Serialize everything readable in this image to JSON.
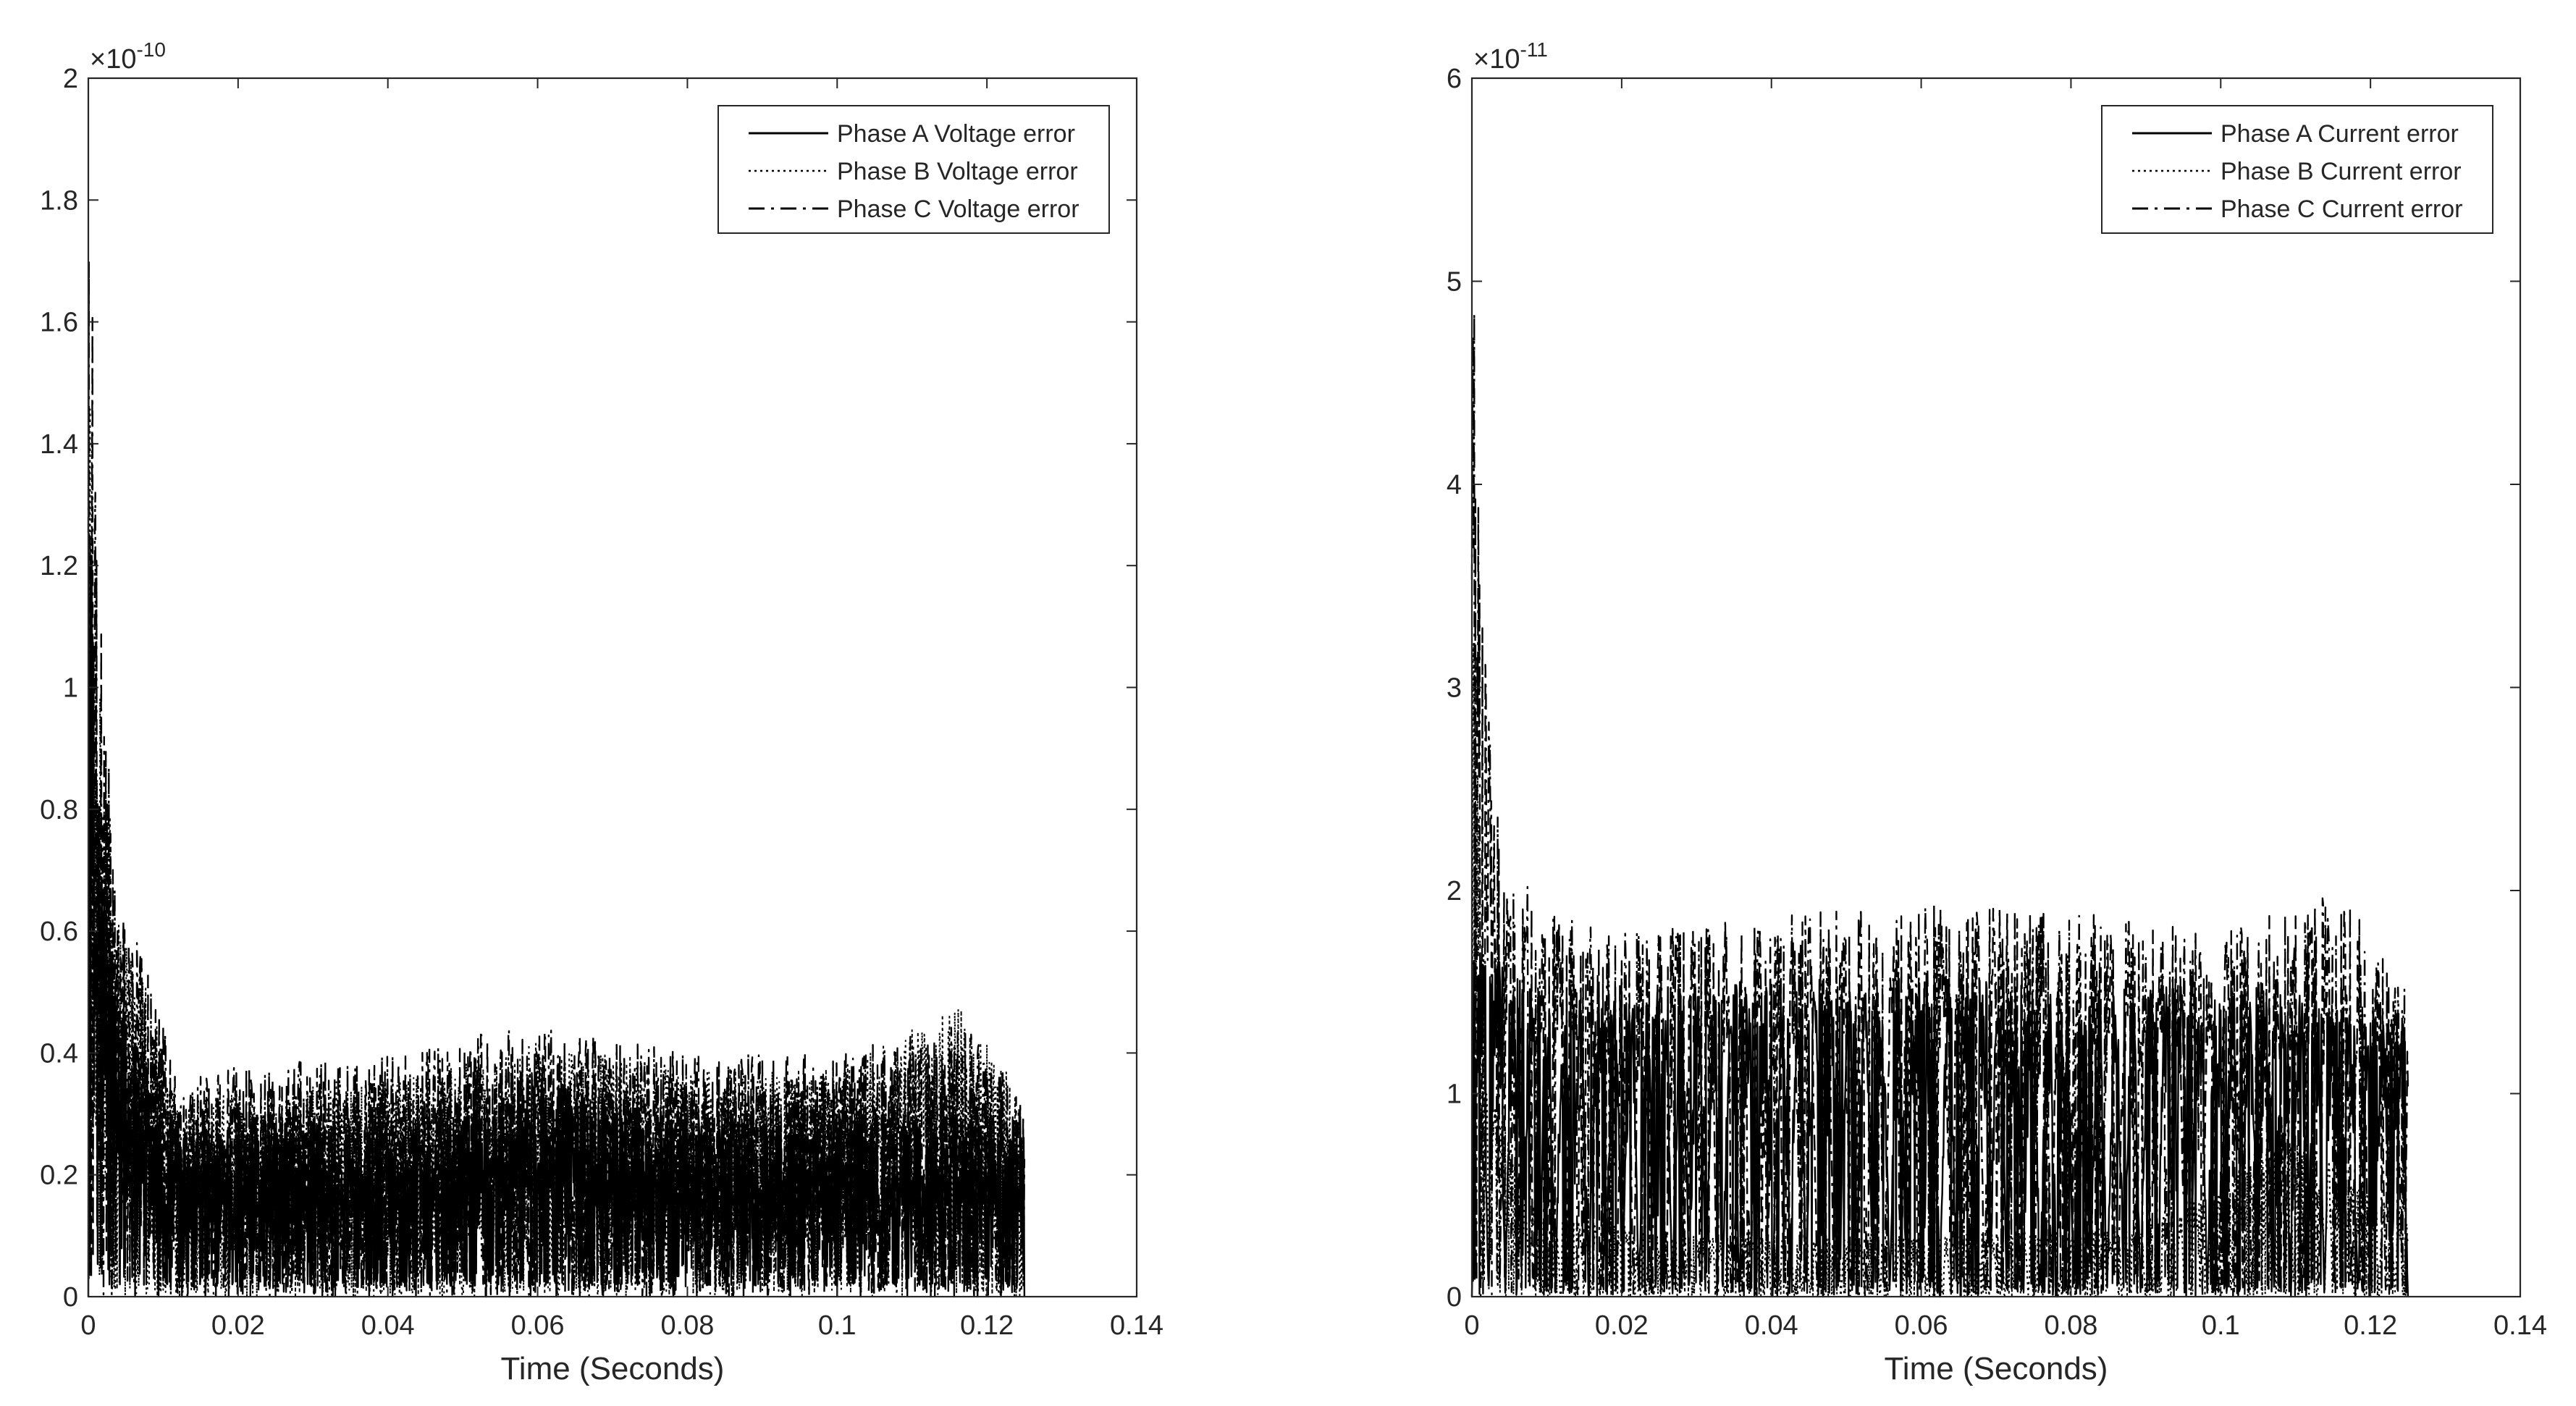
{
  "chart_data": [
    {
      "type": "line",
      "title": "",
      "xlabel": "Time (Seconds)",
      "ylabel": "",
      "exponent_label": "×10",
      "exponent_power": "-10",
      "xlim": [
        0,
        0.14
      ],
      "ylim": [
        0,
        2
      ],
      "xticks": [
        0,
        0.02,
        0.04,
        0.06,
        0.08,
        0.1,
        0.12,
        0.14
      ],
      "xtick_labels": [
        "0",
        "0.02",
        "0.04",
        "0.06",
        "0.08",
        "0.1",
        "0.12",
        "0.14"
      ],
      "yticks": [
        0,
        0.2,
        0.4,
        0.6,
        0.8,
        1,
        1.2,
        1.4,
        1.6,
        1.8,
        2
      ],
      "ytick_labels": [
        "0",
        "0.2",
        "0.4",
        "0.6",
        "0.8",
        "1",
        "1.2",
        "1.4",
        "1.6",
        "1.8",
        "2"
      ],
      "grid": false,
      "legend_position": "top-right",
      "t_end": 0.125,
      "series": [
        {
          "name": "Phase A Voltage error",
          "style": "solid",
          "envelope_t": [
            0,
            0.0015,
            0.004,
            0.008,
            0.012,
            0.02,
            0.03,
            0.05,
            0.06,
            0.08,
            0.1,
            0.125
          ],
          "envelope_v": [
            1.5,
            0.75,
            0.5,
            0.35,
            0.3,
            0.28,
            0.3,
            0.3,
            0.38,
            0.3,
            0.3,
            0.3
          ],
          "cycles": 420,
          "floor": 0.02,
          "seed": 11
        },
        {
          "name": "Phase B Voltage error",
          "style": "dotted",
          "envelope_t": [
            0,
            0.0015,
            0.004,
            0.008,
            0.012,
            0.02,
            0.04,
            0.06,
            0.08,
            0.1,
            0.117,
            0.125
          ],
          "envelope_v": [
            1.8,
            1.0,
            0.65,
            0.5,
            0.32,
            0.34,
            0.36,
            0.42,
            0.38,
            0.38,
            0.48,
            0.32
          ],
          "cycles": 260,
          "floor": 0.0,
          "seed": 23
        },
        {
          "name": "Phase C Voltage error",
          "style": "dashdot",
          "envelope_t": [
            0,
            0.0012,
            0.004,
            0.008,
            0.012,
            0.02,
            0.04,
            0.06,
            0.08,
            0.1,
            0.117,
            0.125
          ],
          "envelope_v": [
            1.95,
            1.2,
            0.65,
            0.55,
            0.35,
            0.38,
            0.4,
            0.45,
            0.4,
            0.4,
            0.45,
            0.32
          ],
          "cycles": 300,
          "floor": 0.0,
          "seed": 37
        }
      ]
    },
    {
      "type": "line",
      "title": "",
      "xlabel": "Time (Seconds)",
      "ylabel": "",
      "exponent_label": "×10",
      "exponent_power": "-11",
      "xlim": [
        0,
        0.14
      ],
      "ylim": [
        0,
        6
      ],
      "xticks": [
        0,
        0.02,
        0.04,
        0.06,
        0.08,
        0.1,
        0.12,
        0.14
      ],
      "xtick_labels": [
        "0",
        "0.02",
        "0.04",
        "0.06",
        "0.08",
        "0.1",
        "0.12",
        "0.14"
      ],
      "yticks": [
        0,
        1,
        2,
        3,
        4,
        5,
        6
      ],
      "ytick_labels": [
        "0",
        "1",
        "2",
        "3",
        "4",
        "5",
        "6"
      ],
      "grid": false,
      "legend_position": "top-right",
      "t_end": 0.125,
      "series": [
        {
          "name": "Phase A Current error",
          "style": "solid",
          "envelope_t": [
            0,
            0.002,
            0.006,
            0.01,
            0.02,
            0.04,
            0.06,
            0.08,
            0.1,
            0.125
          ],
          "envelope_v": [
            1.8,
            1.7,
            1.6,
            1.5,
            1.5,
            1.55,
            1.6,
            1.5,
            1.55,
            1.4
          ],
          "cycles": 28,
          "floor": 0.0,
          "seed": 5
        },
        {
          "name": "Phase B Current error",
          "style": "dotted",
          "envelope_t": [
            0,
            0.002,
            0.006,
            0.01,
            0.03,
            0.06,
            0.09,
            0.11,
            0.125
          ],
          "envelope_v": [
            3.5,
            1.2,
            0.6,
            0.4,
            0.3,
            0.3,
            0.35,
            0.8,
            0.4
          ],
          "cycles": 60,
          "floor": 0.0,
          "seed": 19
        },
        {
          "name": "Phase C Current error",
          "style": "dashdot",
          "envelope_t": [
            0,
            0.0012,
            0.004,
            0.01,
            0.02,
            0.04,
            0.06,
            0.08,
            0.1,
            0.116,
            0.125
          ],
          "envelope_v": [
            5.5,
            3.4,
            2.2,
            1.9,
            1.8,
            1.9,
            1.95,
            1.9,
            1.8,
            2.0,
            1.5
          ],
          "cycles": 28,
          "floor": 0.0,
          "seed": 29
        }
      ]
    }
  ]
}
